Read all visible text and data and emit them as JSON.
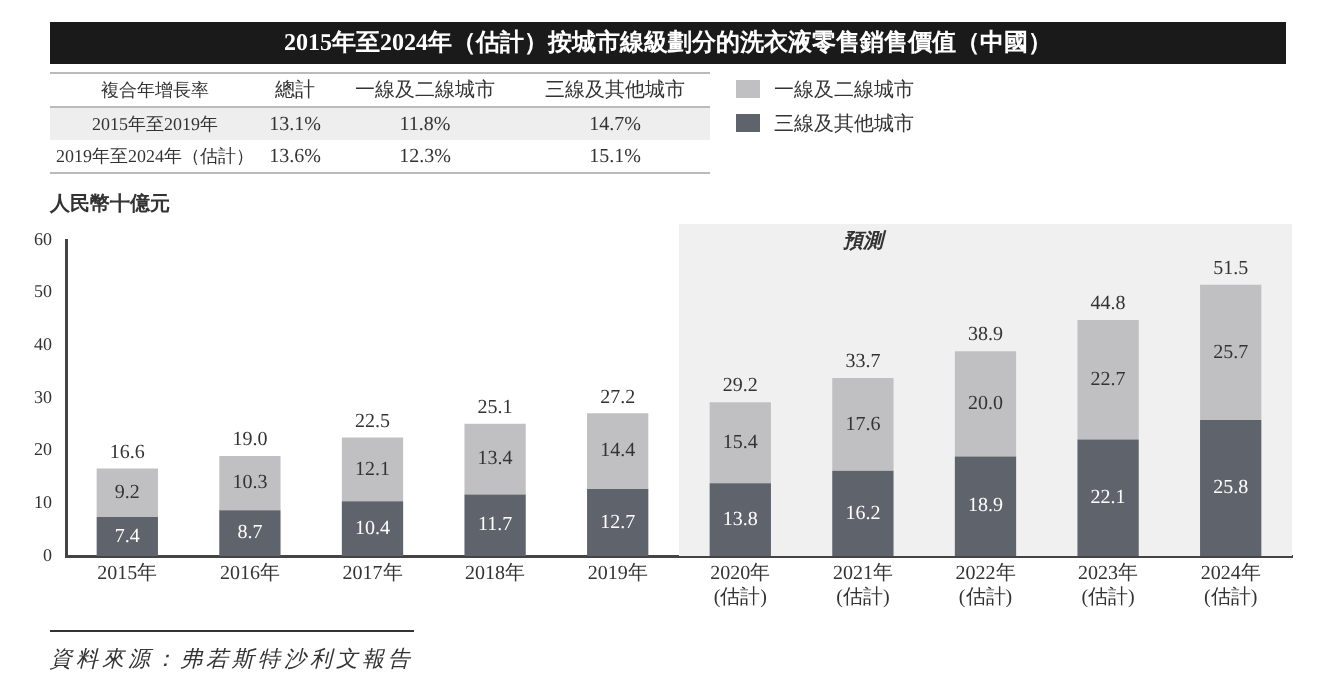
{
  "chart_data": {
    "type": "bar",
    "stacked": true,
    "title": "2015年至2024年（估計）按城市線級劃分的洗衣液零售銷售價值（中國）",
    "ylabel": "人民幣十億元",
    "categories": [
      "2015年",
      "2016年",
      "2017年",
      "2018年",
      "2019年",
      "2020年\n(估計)",
      "2021年\n(估計)",
      "2022年\n(估計)",
      "2023年\n(估計)",
      "2024年\n(估計)"
    ],
    "series": [
      {
        "name": "三線及其他城市",
        "color": "#5f636b",
        "values": [
          7.4,
          8.7,
          10.4,
          11.7,
          12.7,
          13.8,
          16.2,
          18.9,
          22.1,
          25.8
        ],
        "value_labels": [
          "7.4",
          "8.7",
          "10.4",
          "11.7",
          "12.7",
          "13.8",
          "16.2",
          "18.9",
          "22.1",
          "25.8"
        ]
      },
      {
        "name": "一線及二線城市",
        "color": "#c0c0c2",
        "values": [
          9.2,
          10.3,
          12.1,
          13.4,
          14.4,
          15.4,
          17.6,
          20.0,
          22.7,
          25.7
        ],
        "value_labels": [
          "9.2",
          "10.3",
          "12.1",
          "13.4",
          "14.4",
          "15.4",
          "17.6",
          "20.0",
          "22.7",
          "25.7"
        ]
      }
    ],
    "totals": [
      "16.6",
      "19.0",
      "22.5",
      "25.1",
      "27.2",
      "29.2",
      "33.7",
      "38.9",
      "44.8",
      "51.5"
    ],
    "ylim": [
      0,
      60
    ],
    "yticks": [
      0,
      10,
      20,
      30,
      40,
      50,
      60
    ],
    "grid": false,
    "legend": "top right",
    "bands": [
      {
        "axis": "x",
        "from": "2020年\n(估計)",
        "to": "2024年\n(估計)",
        "label": "預測"
      }
    ],
    "annotations": [
      "複合年增長率",
      "總計",
      "一線及二線城市",
      "三線及其他城市",
      "2015年至2019年",
      "13.1%",
      "11.8%",
      "14.7%",
      "2019年至2024年（估計）",
      "13.6%",
      "12.3%",
      "15.1%",
      "資料來源：弗若斯特沙利文報告"
    ]
  }
}
